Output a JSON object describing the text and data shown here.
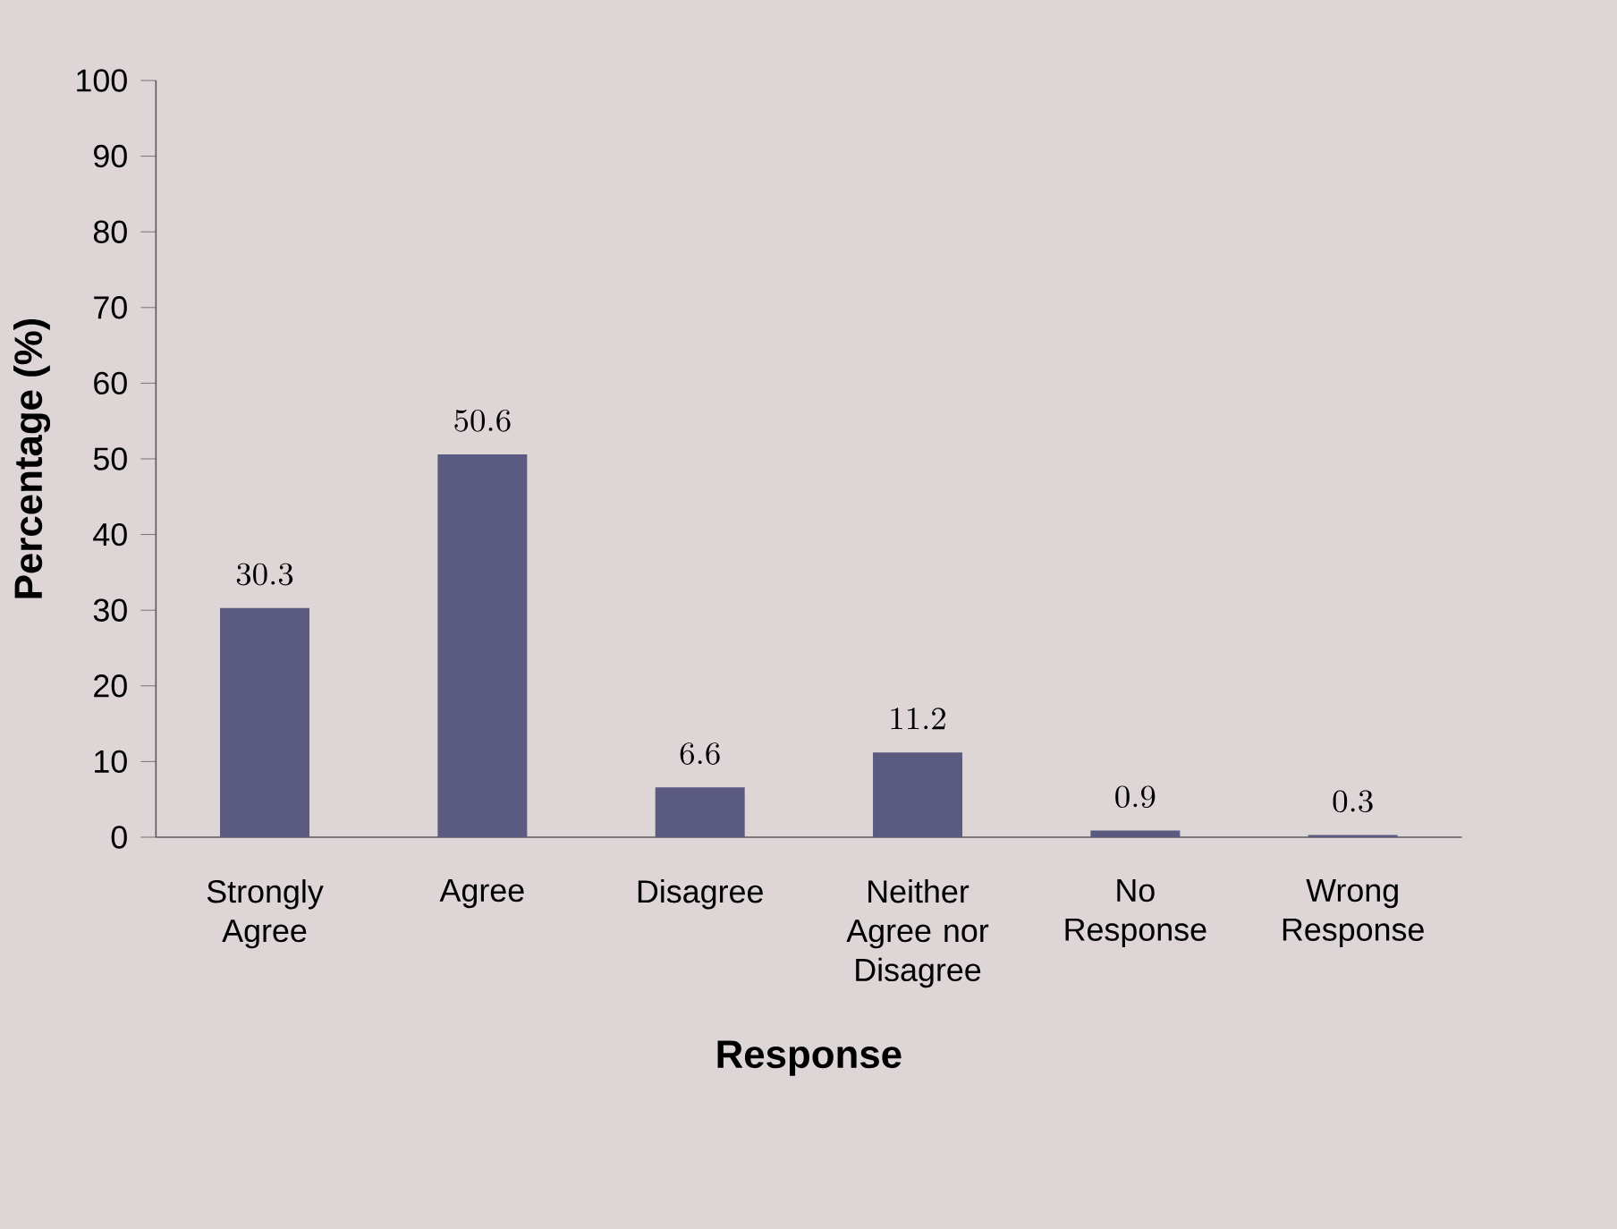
{
  "chart_data": {
    "type": "bar",
    "xlabel": "Response",
    "ylabel": "Percentage (%)",
    "categories": [
      "Strongly Agree",
      "Agree",
      "Disagree",
      "Neither Agree nor Disagree",
      "No Response",
      "Wrong Response"
    ],
    "values": [
      30.3,
      50.6,
      6.6,
      11.2,
      0.9,
      0.3
    ],
    "color": "#5b5b82",
    "ylim": [
      0,
      100
    ],
    "yticks": [
      0,
      10,
      20,
      30,
      40,
      50,
      60,
      70,
      80,
      90,
      100
    ],
    "data_labels": true
  }
}
